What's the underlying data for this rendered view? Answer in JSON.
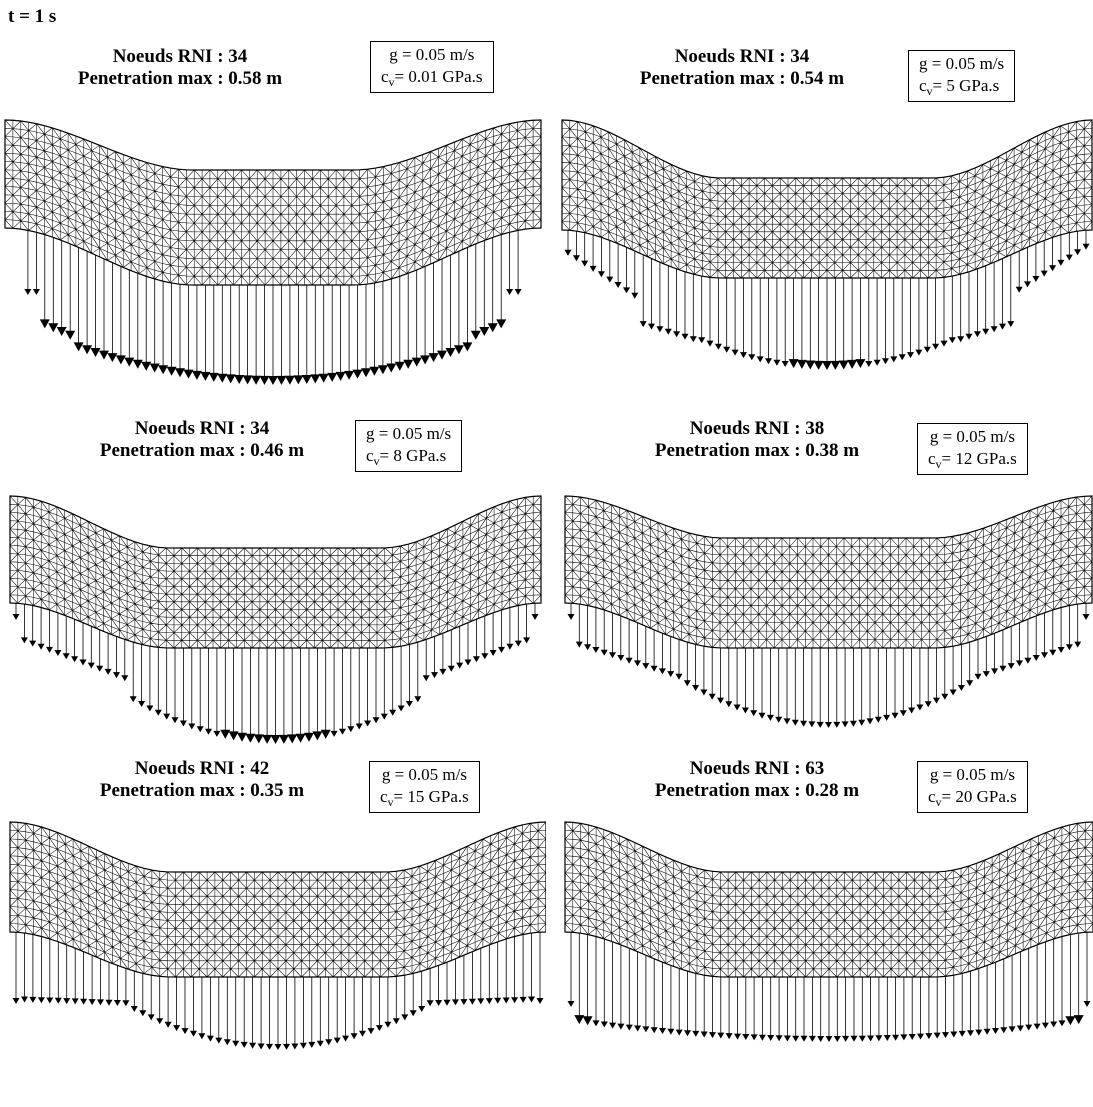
{
  "time_label": "t = 1 s",
  "panels": [
    {
      "nodes": "Noeuds RNI : 34",
      "penetration": "Penetration max : 0.58 m",
      "g": "g = 0.05 m/s",
      "cv_prefix": "c",
      "cv_sub": "v",
      "cv": "=   0.01 GPa.s"
    },
    {
      "nodes": "Noeuds RNI : 34",
      "penetration": "Penetration max : 0.54 m",
      "g": "g = 0.05 m/s",
      "cv_prefix": "c",
      "cv_sub": "v",
      "cv": "=   5 GPa.s"
    },
    {
      "nodes": "Noeuds RNI : 34",
      "penetration": "Penetration max : 0.46 m",
      "g": "g = 0.05 m/s",
      "cv_prefix": "c",
      "cv_sub": "v",
      "cv": "=   8 GPa.s"
    },
    {
      "nodes": "Noeuds RNI : 38",
      "penetration": "Penetration max : 0.38 m",
      "g": "g = 0.05 m/s",
      "cv_prefix": "c",
      "cv_sub": "v",
      "cv": "=   12 GPa.s"
    },
    {
      "nodes": "Noeuds RNI : 42",
      "penetration": "Penetration max : 0.35 m",
      "g": "g = 0.05 m/s",
      "cv_prefix": "c",
      "cv_sub": "v",
      "cv": "=   15 GPa.s"
    },
    {
      "nodes": "Noeuds RNI : 63",
      "penetration": "Penetration max : 0.28 m",
      "g": "g = 0.05 m/s",
      "cv_prefix": "c",
      "cv_sub": "v",
      "cv": "=   20 GPa.s"
    }
  ],
  "colors": {
    "ink": "#000000",
    "background": "#ffffff"
  }
}
